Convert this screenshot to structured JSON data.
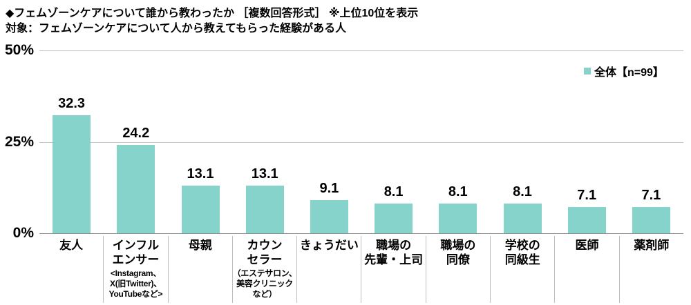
{
  "header": {
    "title": "◆フェムゾーンケアについて誰から教わったか ［複数回答形式］ ※上位10位を表示",
    "subtitle": "対象：フェムゾーンケアについて人から教えてもらった経験がある人"
  },
  "legend": {
    "label": "全体【n=99】",
    "color": "#86d3cb"
  },
  "chart_data": {
    "type": "bar",
    "title": "フェムゾーンケアについて誰から教わったか ［複数回答形式］ ※上位10位を表示",
    "subtitle": "対象：フェムゾーンケアについて人から教えてもらった経験がある人",
    "series_name": "全体",
    "n": 99,
    "categories": [
      {
        "name": "友人",
        "label_lines": [
          "友人"
        ],
        "sub_lines": []
      },
      {
        "name": "インフルエンサー",
        "label_lines": [
          "インフル",
          "エンサー"
        ],
        "sub_lines": [
          "<Instagram、",
          "X(旧Twitter)、",
          "YouTubeなど>"
        ]
      },
      {
        "name": "母親",
        "label_lines": [
          "母親"
        ],
        "sub_lines": []
      },
      {
        "name": "カウンセラー",
        "label_lines": [
          "カウン",
          "セラー"
        ],
        "sub_lines": [
          "（エステサロン、",
          "美容クリニック",
          "など）"
        ]
      },
      {
        "name": "きょうだい",
        "label_lines": [
          "きょうだい"
        ],
        "sub_lines": []
      },
      {
        "name": "職場の先輩・上司",
        "label_lines": [
          "職場の",
          "先輩・上司"
        ],
        "sub_lines": []
      },
      {
        "name": "職場の同僚",
        "label_lines": [
          "職場の",
          "同僚"
        ],
        "sub_lines": []
      },
      {
        "name": "学校の同級生",
        "label_lines": [
          "学校の",
          "同級生"
        ],
        "sub_lines": []
      },
      {
        "name": "医師",
        "label_lines": [
          "医師"
        ],
        "sub_lines": []
      },
      {
        "name": "薬剤師",
        "label_lines": [
          "薬剤師"
        ],
        "sub_lines": []
      }
    ],
    "values": [
      32.3,
      24.2,
      13.1,
      13.1,
      9.1,
      8.1,
      8.1,
      8.1,
      7.1,
      7.1
    ],
    "value_suffix": "",
    "ylabel": "%",
    "ylim": [
      0,
      50
    ],
    "yticks": [
      0,
      25,
      50
    ],
    "ytick_labels": [
      "0%",
      "25%",
      "50%"
    ],
    "grid": true,
    "legend_position": "top-right",
    "bar_color": "#86d3cb"
  }
}
